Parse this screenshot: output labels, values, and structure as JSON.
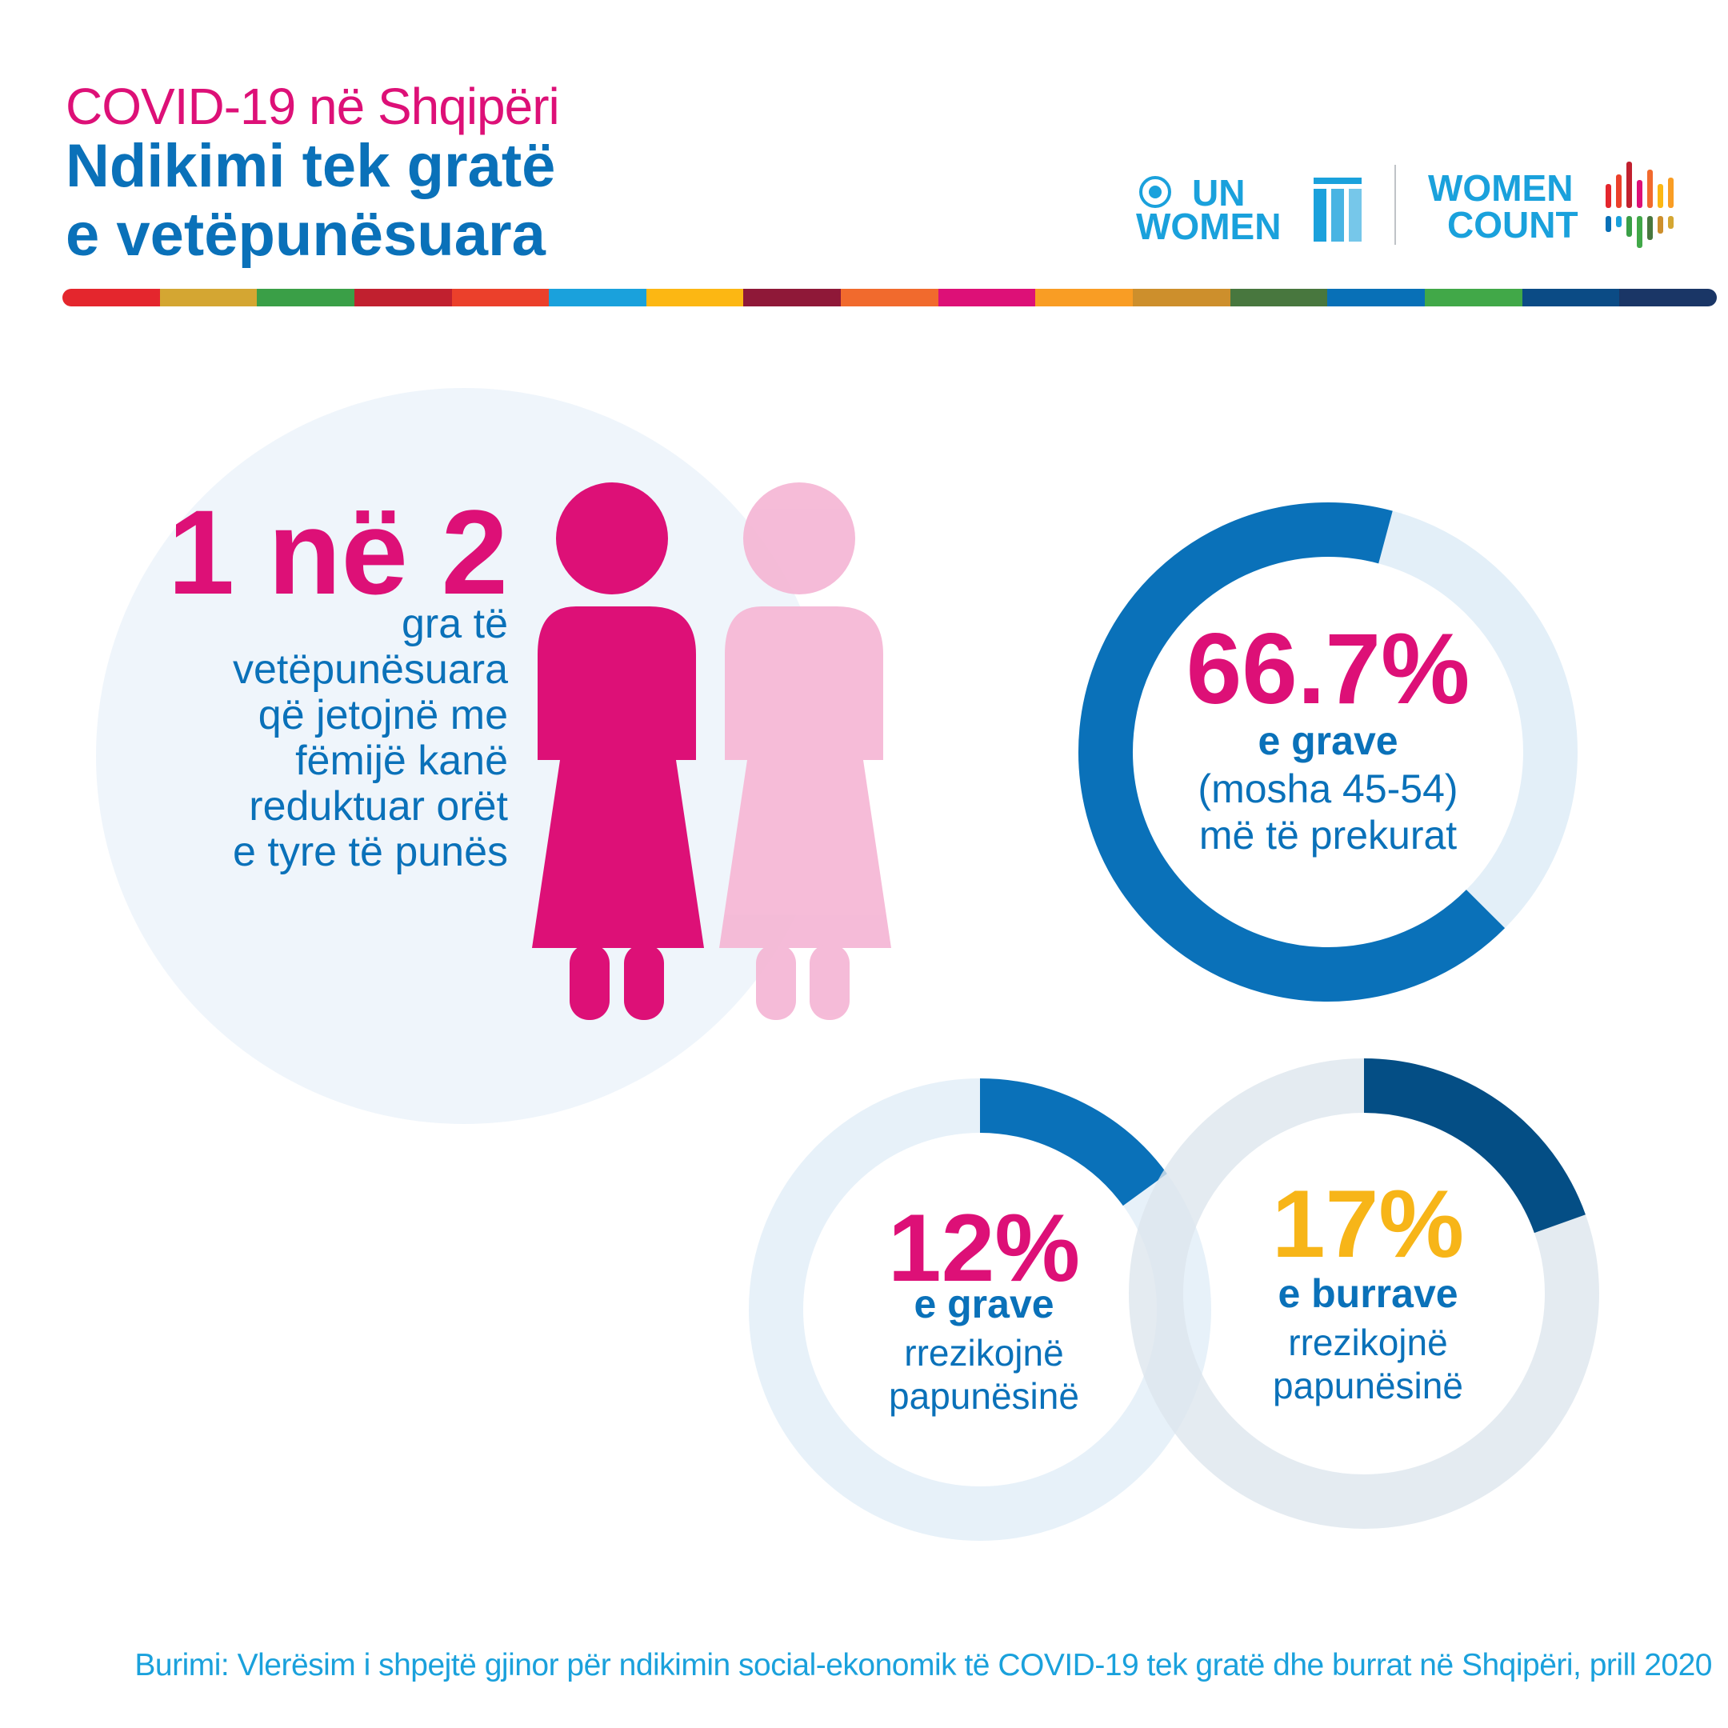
{
  "header": {
    "subtitle": "COVID-19 në Shqipëri",
    "title_line1": "Ndikimi tek gratë",
    "title_line2": "e vetëpunësuara"
  },
  "logos": {
    "un_women": {
      "line1": "UN",
      "line2": "WOMEN"
    },
    "women_count": {
      "line1": "WOMEN",
      "line2": "COUNT"
    }
  },
  "colors": {
    "pink": "#dd1077",
    "light_pink": "#f5b8d6",
    "blue": "#0a71b9",
    "dark_blue": "#044e85",
    "yellow": "#f7b518",
    "light_track": "#e3eff8",
    "stripe": [
      "#e4262d",
      "#d4a632",
      "#3a9f47",
      "#c1202f",
      "#eb402b",
      "#1aa1dc",
      "#fcb713",
      "#8f1838",
      "#f16a2d",
      "#dd1077",
      "#f99d24",
      "#cd8f2c",
      "#48773e",
      "#0870b7",
      "#41a848",
      "#0b4b85",
      "#1a3666"
    ]
  },
  "stat1": {
    "value": "1 në 2",
    "lines": [
      "gra të",
      "vetëpunësuara",
      "që jetojnë me",
      "fëmijë kanë",
      "reduktuar orët",
      "e tyre të punës"
    ]
  },
  "chart_data": [
    {
      "type": "pie",
      "values": [
        66.7,
        33.3
      ],
      "unit": "%",
      "label": "66.7%",
      "lines": [
        "e grave",
        "(mosha 45-54)",
        "më të prekurat"
      ]
    },
    {
      "type": "pie",
      "values": [
        12,
        88
      ],
      "unit": "%",
      "label": "12%",
      "lines": [
        "e grave",
        "rrezikojnë",
        "papunësinë"
      ]
    },
    {
      "type": "pie",
      "values": [
        17,
        83
      ],
      "unit": "%",
      "label": "17%",
      "lines": [
        "e burrave",
        "rrezikojnë",
        "papunësinë"
      ]
    }
  ],
  "source": "Burimi: Vlerësim i shpejtë gjinor për ndikimin social-ekonomik të COVID-19 tek gratë dhe burrat në Shqipëri, prill 2020"
}
